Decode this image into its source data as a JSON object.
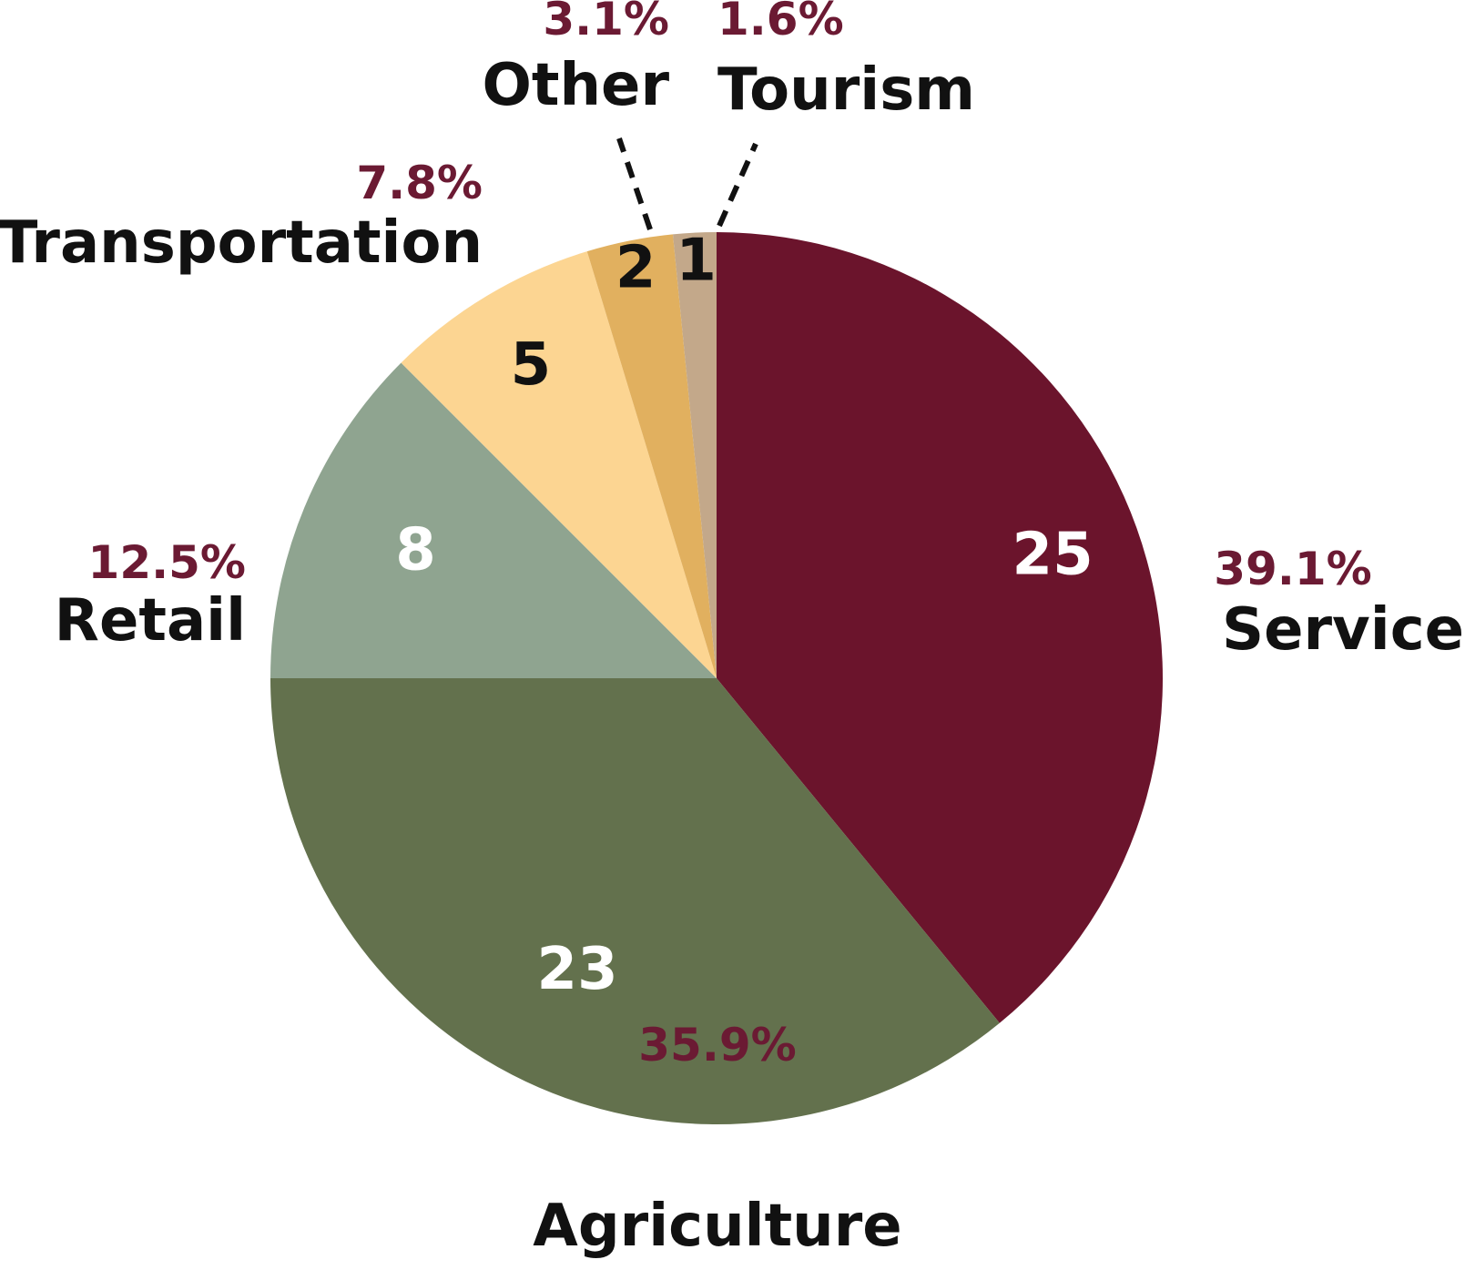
{
  "chart_data": {
    "type": "pie",
    "title": "",
    "slices": [
      {
        "name": "Service",
        "value": 25,
        "percent": "39.1%",
        "color": "#6b142c",
        "value_color": "#ffffff"
      },
      {
        "name": "Agriculture",
        "value": 23,
        "percent": "35.9%",
        "color": "#63714d",
        "value_color": "#ffffff"
      },
      {
        "name": "Retail",
        "value": 8,
        "percent": "12.5%",
        "color": "#8fa490",
        "value_color": "#ffffff"
      },
      {
        "name": "Transportation",
        "value": 5,
        "percent": "7.8%",
        "color": "#fcd592",
        "value_color": "#111111"
      },
      {
        "name": "Other",
        "value": 2,
        "percent": "3.1%",
        "color": "#e1b05f",
        "value_color": "#111111"
      },
      {
        "name": "Tourism",
        "value": 1,
        "percent": "1.6%",
        "color": "#c3a88a",
        "value_color": "#111111"
      }
    ],
    "start": "12 o'clock",
    "direction": "clockwise",
    "percent_color": "#6b1a33",
    "legend": "none"
  }
}
